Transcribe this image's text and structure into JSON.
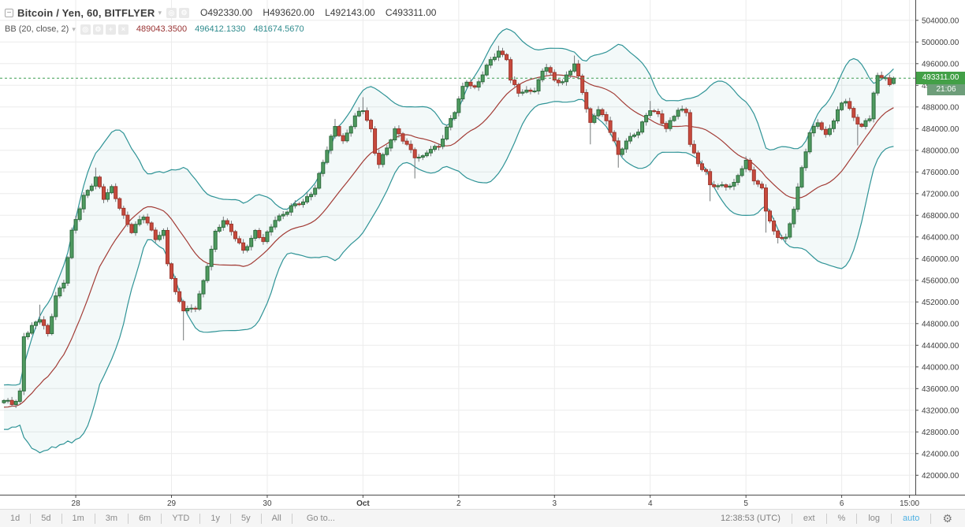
{
  "legend": {
    "symbol": "Bitcoin / Yen, 60, BITFLYER",
    "ohlc": [
      {
        "k": "O",
        "v": "492330.00"
      },
      {
        "k": "H",
        "v": "493620.00"
      },
      {
        "k": "L",
        "v": "492143.00"
      },
      {
        "k": "C",
        "v": "493311.00"
      }
    ],
    "indicator": {
      "name": "BB (20, close, 2)",
      "basis": "489043.3500",
      "upper": "496412.1330",
      "lower": "481674.5670"
    },
    "icons": {
      "collapse": "−",
      "caret": "▾",
      "eye": "◎",
      "gear": "⚙",
      "plus": "+",
      "close": "×"
    }
  },
  "price_axis": {
    "min": 420000,
    "max": 504000,
    "step": 4000,
    "decimals": 2,
    "last_price": "493311.00",
    "countdown": "21:06"
  },
  "time_axis": {
    "labels": [
      {
        "text": "28",
        "bar": 18
      },
      {
        "text": "29",
        "bar": 42
      },
      {
        "text": "30",
        "bar": 66
      },
      {
        "text": "Oct",
        "bar": 90,
        "bold": true
      },
      {
        "text": "2",
        "bar": 114
      },
      {
        "text": "3",
        "bar": 138
      },
      {
        "text": "4",
        "bar": 162
      },
      {
        "text": "5",
        "bar": 186
      },
      {
        "text": "6",
        "bar": 210
      },
      {
        "text": "15:00",
        "bar": 227
      }
    ]
  },
  "toolbar": {
    "ranges": [
      "1d",
      "5d",
      "1m",
      "3m",
      "6m",
      "YTD",
      "1y",
      "5y",
      "All"
    ],
    "goto_label": "Go to...",
    "clock": "12:38:53 (UTC)",
    "ext": "ext",
    "percent": "%",
    "log": "log",
    "auto": "auto",
    "gear": "⚙"
  },
  "chart_data": {
    "type": "candlestick",
    "symbol": "Bitcoin / Yen",
    "interval_minutes": 60,
    "exchange": "BITFLYER",
    "last_bar": {
      "open": 492330,
      "high": 493620,
      "low": 492143,
      "close": 493311
    },
    "indicator_bb": {
      "length": 20,
      "source": "close",
      "mult": 2,
      "basis": 489043.35,
      "upper": 496412.133,
      "lower": 481674.567
    },
    "y_axis": {
      "min": 420000,
      "max": 504000,
      "step": 4000
    },
    "bars_per_day": 24,
    "num_bars": 224,
    "close_anchors": [
      [
        0,
        433800
      ],
      [
        2,
        433000
      ],
      [
        3,
        433600
      ],
      [
        4,
        435300
      ],
      [
        5,
        445800
      ],
      [
        7,
        447600
      ],
      [
        9,
        448800
      ],
      [
        11,
        445800
      ],
      [
        13,
        453300
      ],
      [
        15,
        455800
      ],
      [
        17,
        464800
      ],
      [
        20,
        471500
      ],
      [
        23,
        475100
      ],
      [
        25,
        471000
      ],
      [
        27,
        472900
      ],
      [
        30,
        468000
      ],
      [
        32,
        465000
      ],
      [
        35,
        467800
      ],
      [
        38,
        464000
      ],
      [
        40,
        464900
      ],
      [
        41,
        459000
      ],
      [
        43,
        453500
      ],
      [
        45,
        450800
      ],
      [
        48,
        450900
      ],
      [
        50,
        455500
      ],
      [
        53,
        465000
      ],
      [
        55,
        467300
      ],
      [
        57,
        464800
      ],
      [
        60,
        461500
      ],
      [
        63,
        465100
      ],
      [
        65,
        463000
      ],
      [
        68,
        467300
      ],
      [
        72,
        469500
      ],
      [
        75,
        470300
      ],
      [
        78,
        473300
      ],
      [
        80,
        477800
      ],
      [
        83,
        484300
      ],
      [
        85,
        481800
      ],
      [
        88,
        486200
      ],
      [
        90,
        487300
      ],
      [
        92,
        483800
      ],
      [
        93,
        479800
      ],
      [
        94,
        477800
      ],
      [
        96,
        480300
      ],
      [
        98,
        483600
      ],
      [
        101,
        481300
      ],
      [
        103,
        478900
      ],
      [
        105,
        478500
      ],
      [
        107,
        480300
      ],
      [
        109,
        480900
      ],
      [
        111,
        484200
      ],
      [
        113,
        487000
      ],
      [
        115,
        491500
      ],
      [
        116,
        492900
      ],
      [
        118,
        491600
      ],
      [
        120,
        494000
      ],
      [
        122,
        496500
      ],
      [
        124,
        498300
      ],
      [
        126,
        497200
      ],
      [
        127,
        493000
      ],
      [
        129,
        490500
      ],
      [
        131,
        490800
      ],
      [
        133,
        491400
      ],
      [
        135,
        494600
      ],
      [
        136,
        495400
      ],
      [
        138,
        492600
      ],
      [
        140,
        492800
      ],
      [
        143,
        496100
      ],
      [
        145,
        490500
      ],
      [
        147,
        484900
      ],
      [
        149,
        488000
      ],
      [
        151,
        485300
      ],
      [
        153,
        481500
      ],
      [
        154,
        478800
      ],
      [
        156,
        482000
      ],
      [
        159,
        483600
      ],
      [
        162,
        487400
      ],
      [
        164,
        486700
      ],
      [
        166,
        484200
      ],
      [
        169,
        487300
      ],
      [
        171,
        487000
      ],
      [
        172,
        481500
      ],
      [
        174,
        477600
      ],
      [
        176,
        475800
      ],
      [
        177,
        473200
      ],
      [
        179,
        473500
      ],
      [
        181,
        473600
      ],
      [
        183,
        473800
      ],
      [
        185,
        476600
      ],
      [
        186,
        477800
      ],
      [
        188,
        474800
      ],
      [
        190,
        473000
      ],
      [
        191,
        469000
      ],
      [
        193,
        464600
      ],
      [
        194,
        463900
      ],
      [
        196,
        463900
      ],
      [
        198,
        469500
      ],
      [
        200,
        476500
      ],
      [
        202,
        483000
      ],
      [
        204,
        485500
      ],
      [
        206,
        482800
      ],
      [
        208,
        485400
      ],
      [
        210,
        488600
      ],
      [
        211,
        489300
      ],
      [
        213,
        486200
      ],
      [
        215,
        484300
      ],
      [
        217,
        485800
      ],
      [
        218,
        490500
      ],
      [
        219,
        493600
      ],
      [
        221,
        493800
      ],
      [
        222,
        492000
      ],
      [
        223,
        493311
      ]
    ],
    "wick_overrides": [
      {
        "i": 9,
        "high": 451500
      },
      {
        "i": 23,
        "high": 476800
      },
      {
        "i": 45,
        "low": 444900
      },
      {
        "i": 83,
        "high": 485800
      },
      {
        "i": 90,
        "high": 489800
      },
      {
        "i": 103,
        "low": 474800
      },
      {
        "i": 124,
        "high": 499300
      },
      {
        "i": 143,
        "high": 497500
      },
      {
        "i": 147,
        "low": 481100
      },
      {
        "i": 154,
        "low": 476800
      },
      {
        "i": 162,
        "high": 489100
      },
      {
        "i": 177,
        "low": 470600
      },
      {
        "i": 191,
        "low": 464800
      },
      {
        "i": 194,
        "low": 462800
      },
      {
        "i": 214,
        "low": 480900
      }
    ],
    "pre_window": {
      "base": 431300,
      "slope": 110,
      "zigzag": 2000,
      "count": 20
    },
    "colors": {
      "up_fill": "#4f9b60",
      "up_border": "#2e6b3e",
      "down_fill": "#c74a3d",
      "down_border": "#9e362d",
      "wick": "#74787a",
      "band_line": "#2e9396",
      "band_fill": "rgba(46,147,150,0.06)",
      "basis_line": "#a23b35",
      "grid": "#ececec",
      "axis_line": "#4a4a4a",
      "axis_text": "#3f3f3f",
      "last_price_line": "#3f9e52",
      "badge_bg": "#43a047",
      "countdown_bg": "#6e9e7a",
      "bb_basis_text": "#993333",
      "bb_band_text": "#2e8b8d"
    }
  }
}
